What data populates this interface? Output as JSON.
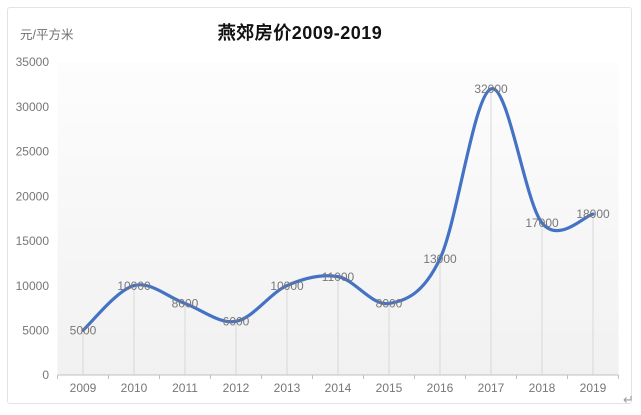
{
  "window": {
    "return_mark": "↵"
  },
  "chart_data": {
    "type": "line",
    "title": "燕郊房价2009-2019",
    "ylabel": "元/平方米",
    "xlabel": "",
    "categories": [
      "2009",
      "2010",
      "2011",
      "2012",
      "2013",
      "2014",
      "2015",
      "2016",
      "2017",
      "2018",
      "2019"
    ],
    "values": [
      5000,
      10000,
      8000,
      6000,
      10000,
      11000,
      8000,
      13000,
      32000,
      17000,
      18000
    ],
    "data_labels": [
      "5000",
      "10000",
      "8000",
      "6000",
      "10000",
      "11000",
      "8000",
      "13000",
      "32000",
      "17000",
      "18000"
    ],
    "ylim": [
      0,
      35000
    ],
    "ytick_step": 5000,
    "ytick_labels": [
      "0",
      "5000",
      "10000",
      "15000",
      "20000",
      "25000",
      "30000",
      "35000"
    ],
    "grid": "vertical drop lines from points only, no horizontal gridlines",
    "legend": "none",
    "smooth_line": true,
    "colors": {
      "line": "#4472C4",
      "tick_text": "#777777",
      "data_label_text": "#777777",
      "axis_line": "#c0c0c0",
      "drop_line": "#d8d8d8",
      "plot_top": "#fdfdfd",
      "plot_bottom": "#f1f1f1",
      "title_text": "#121212",
      "frame_border": "#e3e3e3"
    }
  }
}
